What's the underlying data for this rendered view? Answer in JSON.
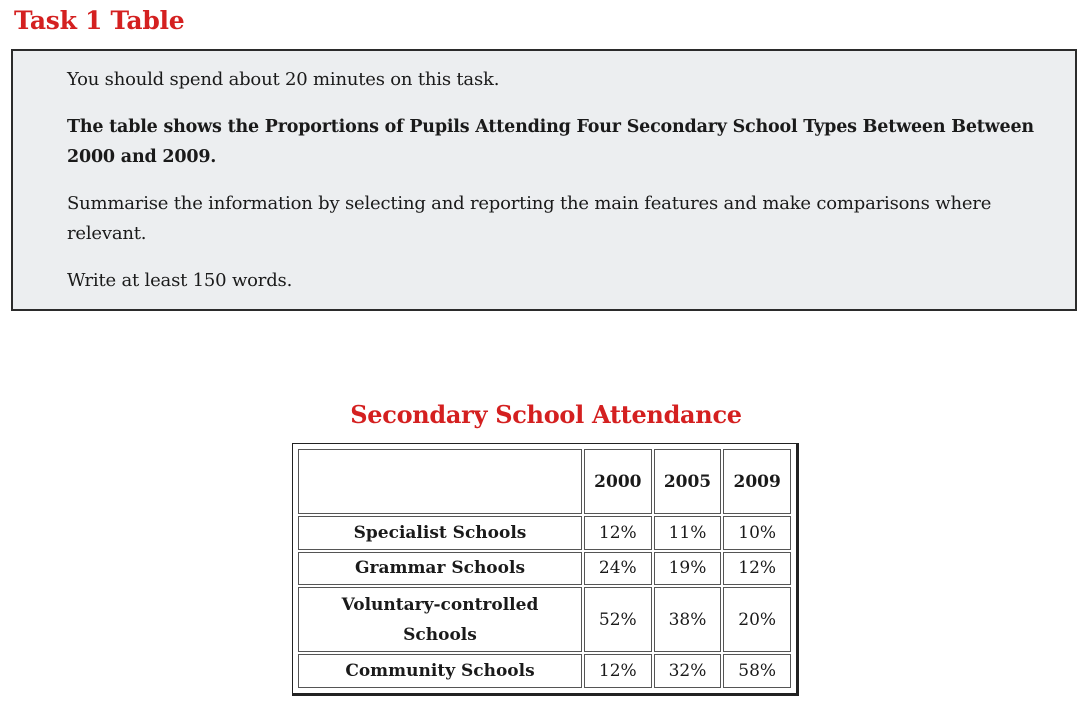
{
  "page": {
    "title": "Task 1 Table"
  },
  "task": {
    "instruction_time": "You should spend about 20 minutes on this task.",
    "prompt": "The table shows the Proportions of Pupils Attending Four Secondary School Types Between Between 2000 and 2009.",
    "summary_instruction": "Summarise the information by selecting and reporting the main features and make comparisons where relevant.",
    "word_count": "Write at least 150 words."
  },
  "table": {
    "title": "Secondary School Attendance",
    "columns": [
      "2000",
      "2005",
      "2009"
    ],
    "rows": [
      {
        "label": "Specialist Schools",
        "values": [
          "12%",
          "11%",
          "10%"
        ]
      },
      {
        "label": "Grammar Schools",
        "values": [
          "24%",
          "19%",
          "12%"
        ]
      },
      {
        "label": "Voluntary-controlled Schools",
        "values": [
          "52%",
          "38%",
          "20%"
        ]
      },
      {
        "label": "Community Schools",
        "values": [
          "12%",
          "32%",
          "58%"
        ]
      }
    ]
  },
  "colors": {
    "heading": "#d42020",
    "box_background": "#eceef0"
  }
}
